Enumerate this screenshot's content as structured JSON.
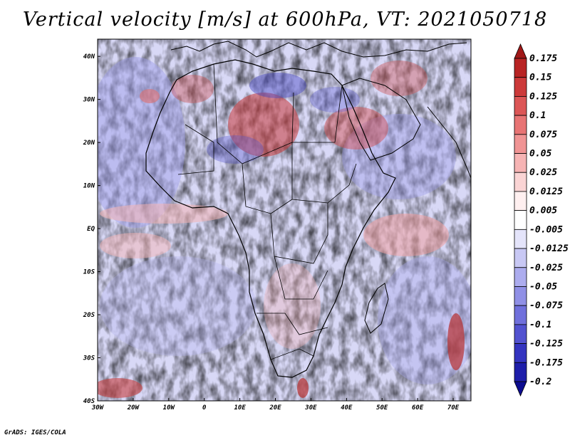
{
  "title": "Vertical velocity [m/s] at 600hPa, VT: 2021050718",
  "credit": "GrADS: IGES/COLA",
  "map": {
    "lat_labels": [
      "40N",
      "30N",
      "20N",
      "10N",
      "EQ",
      "10S",
      "20S",
      "30S",
      "40S"
    ],
    "lat_values": [
      40,
      30,
      20,
      10,
      0,
      -10,
      -20,
      -30,
      -40
    ],
    "lon_labels": [
      "30W",
      "20W",
      "10W",
      "0",
      "10E",
      "20E",
      "30E",
      "40E",
      "50E",
      "60E",
      "70E"
    ],
    "lon_values": [
      -30,
      -20,
      -10,
      0,
      10,
      20,
      30,
      40,
      50,
      60,
      70
    ],
    "lon_range": [
      -30,
      75
    ],
    "lat_range": [
      -40,
      44
    ]
  },
  "colorbar": {
    "labels": [
      "0.175",
      "0.15",
      "0.125",
      "0.1",
      "0.075",
      "0.05",
      "0.025",
      "0.0125",
      "0.005",
      "-0.005",
      "-0.0125",
      "-0.025",
      "-0.05",
      "-0.075",
      "-0.1",
      "-0.125",
      "-0.175",
      "-0.2"
    ],
    "colors": [
      "#a01818",
      "#b82424",
      "#cc3a3a",
      "#dc5656",
      "#e87474",
      "#f09494",
      "#f6b4b4",
      "#fad4d4",
      "#fff0f0",
      "#ffffff",
      "#e4e4fa",
      "#c8c8f4",
      "#acacee",
      "#9090e6",
      "#7070dc",
      "#5252d0",
      "#3434c0",
      "#1e1eaa",
      "#0c0c90"
    ]
  }
}
